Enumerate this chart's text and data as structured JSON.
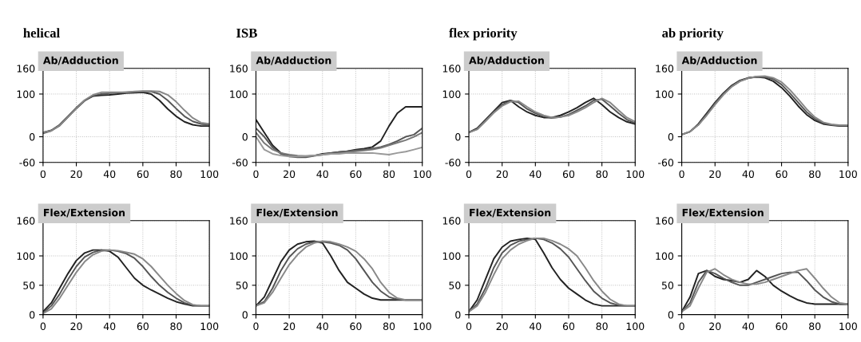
{
  "chart_data": [
    {
      "type": "line",
      "title": "helical",
      "subtitle": "Ab/Adduction",
      "x": [
        0,
        5,
        10,
        15,
        20,
        25,
        30,
        35,
        40,
        45,
        50,
        55,
        60,
        65,
        70,
        75,
        80,
        85,
        90,
        95,
        100
      ],
      "xlim": [
        0,
        100
      ],
      "ylim": [
        -60,
        160
      ],
      "xticks": [
        0,
        20,
        40,
        60,
        80,
        100
      ],
      "yticks": [
        -60,
        0,
        100,
        160
      ],
      "grid": true,
      "series": [
        {
          "color": "#222222",
          "values": [
            10,
            15,
            28,
            48,
            68,
            85,
            95,
            97,
            98,
            100,
            102,
            103,
            104,
            100,
            85,
            65,
            48,
            35,
            28,
            25,
            25
          ]
        },
        {
          "color": "#555555",
          "values": [
            8,
            14,
            26,
            46,
            66,
            84,
            96,
            100,
            102,
            103,
            104,
            105,
            106,
            106,
            100,
            85,
            66,
            48,
            36,
            30,
            28
          ]
        },
        {
          "color": "#888888",
          "values": [
            10,
            14,
            27,
            47,
            67,
            86,
            98,
            104,
            104,
            104,
            104,
            106,
            107,
            107,
            106,
            98,
            82,
            62,
            44,
            33,
            30
          ]
        }
      ]
    },
    {
      "type": "line",
      "title": "ISB",
      "subtitle": "Ab/Adduction",
      "x": [
        0,
        5,
        10,
        15,
        20,
        25,
        30,
        35,
        40,
        45,
        50,
        55,
        60,
        65,
        70,
        75,
        80,
        85,
        90,
        95,
        100
      ],
      "xlim": [
        0,
        100
      ],
      "ylim": [
        -60,
        160
      ],
      "xticks": [
        0,
        20,
        40,
        60,
        80,
        100
      ],
      "yticks": [
        -60,
        0,
        100,
        160
      ],
      "grid": true,
      "series": [
        {
          "color": "#222222",
          "values": [
            40,
            10,
            -20,
            -38,
            -45,
            -46,
            -46,
            -44,
            -40,
            -38,
            -36,
            -34,
            -30,
            -28,
            -24,
            -10,
            25,
            55,
            70,
            70,
            70
          ]
        },
        {
          "color": "#555555",
          "values": [
            20,
            0,
            -25,
            -40,
            -46,
            -48,
            -48,
            -45,
            -42,
            -38,
            -36,
            -34,
            -32,
            -30,
            -28,
            -24,
            -18,
            -10,
            0,
            5,
            20
          ]
        },
        {
          "color": "#777777",
          "values": [
            10,
            -15,
            -30,
            -38,
            -42,
            -44,
            -45,
            -44,
            -42,
            -40,
            -38,
            -36,
            -34,
            -32,
            -30,
            -26,
            -20,
            -14,
            -8,
            0,
            10
          ]
        },
        {
          "color": "#999999",
          "values": [
            0,
            -30,
            -40,
            -44,
            -46,
            -46,
            -45,
            -44,
            -42,
            -40,
            -40,
            -38,
            -38,
            -38,
            -38,
            -40,
            -42,
            -38,
            -35,
            -30,
            -25
          ]
        }
      ]
    },
    {
      "type": "line",
      "title": "flex priority",
      "subtitle": "Ab/Adduction",
      "x": [
        0,
        5,
        10,
        15,
        20,
        25,
        30,
        35,
        40,
        45,
        50,
        55,
        60,
        65,
        70,
        75,
        80,
        85,
        90,
        95,
        100
      ],
      "xlim": [
        0,
        100
      ],
      "ylim": [
        -60,
        160
      ],
      "xticks": [
        0,
        20,
        40,
        60,
        80,
        100
      ],
      "yticks": [
        -60,
        0,
        100,
        160
      ],
      "grid": true,
      "series": [
        {
          "color": "#222222",
          "values": [
            10,
            20,
            40,
            60,
            80,
            85,
            70,
            58,
            50,
            45,
            45,
            50,
            58,
            68,
            80,
            90,
            75,
            58,
            45,
            35,
            30
          ]
        },
        {
          "color": "#555555",
          "values": [
            10,
            18,
            38,
            58,
            75,
            85,
            80,
            65,
            55,
            48,
            44,
            46,
            52,
            62,
            72,
            85,
            88,
            72,
            55,
            40,
            32
          ]
        },
        {
          "color": "#888888",
          "values": [
            10,
            17,
            36,
            56,
            72,
            82,
            83,
            70,
            58,
            50,
            45,
            46,
            50,
            58,
            68,
            80,
            90,
            80,
            62,
            45,
            35
          ]
        }
      ]
    },
    {
      "type": "line",
      "title": "ab priority",
      "subtitle": "Ab/Adduction",
      "x": [
        0,
        5,
        10,
        15,
        20,
        25,
        30,
        35,
        40,
        45,
        50,
        55,
        60,
        65,
        70,
        75,
        80,
        85,
        90,
        95,
        100
      ],
      "xlim": [
        0,
        100
      ],
      "ylim": [
        -60,
        160
      ],
      "xticks": [
        0,
        20,
        40,
        60,
        80,
        100
      ],
      "yticks": [
        -60,
        0,
        100,
        160
      ],
      "grid": true,
      "series": [
        {
          "color": "#222222",
          "values": [
            5,
            12,
            30,
            55,
            80,
            102,
            120,
            132,
            138,
            140,
            138,
            130,
            115,
            95,
            72,
            52,
            38,
            30,
            27,
            25,
            25
          ]
        },
        {
          "color": "#555555",
          "values": [
            5,
            12,
            28,
            52,
            78,
            100,
            118,
            130,
            137,
            140,
            140,
            135,
            122,
            102,
            80,
            58,
            42,
            32,
            28,
            26,
            26
          ]
        },
        {
          "color": "#888888",
          "values": [
            5,
            12,
            28,
            50,
            75,
            98,
            117,
            130,
            137,
            141,
            142,
            138,
            128,
            110,
            88,
            65,
            46,
            34,
            29,
            27,
            27
          ]
        }
      ]
    },
    {
      "type": "line",
      "title": "Flex/Extension",
      "x": [
        0,
        5,
        10,
        15,
        20,
        25,
        30,
        35,
        40,
        45,
        50,
        55,
        60,
        65,
        70,
        75,
        80,
        85,
        90,
        95,
        100
      ],
      "xlim": [
        0,
        100
      ],
      "ylim": [
        0,
        160
      ],
      "xticks": [
        0,
        20,
        40,
        60,
        80,
        100
      ],
      "yticks": [
        0,
        50,
        100,
        160
      ],
      "grid": true,
      "series": [
        {
          "color": "#222222",
          "values": [
            5,
            20,
            45,
            70,
            92,
            105,
            110,
            110,
            108,
            98,
            80,
            62,
            50,
            42,
            35,
            28,
            22,
            18,
            15,
            15,
            15
          ]
        },
        {
          "color": "#555555",
          "values": [
            3,
            15,
            35,
            60,
            82,
            98,
            106,
            110,
            110,
            108,
            104,
            96,
            82,
            65,
            50,
            38,
            28,
            20,
            16,
            15,
            15
          ]
        },
        {
          "color": "#888888",
          "values": [
            2,
            10,
            28,
            50,
            72,
            90,
            102,
            108,
            110,
            109,
            106,
            103,
            95,
            82,
            66,
            50,
            36,
            24,
            17,
            15,
            15
          ]
        }
      ]
    },
    {
      "type": "line",
      "title": "Flex/Extension",
      "x": [
        0,
        5,
        10,
        15,
        20,
        25,
        30,
        35,
        40,
        45,
        50,
        55,
        60,
        65,
        70,
        75,
        80,
        85,
        90,
        95,
        100
      ],
      "xlim": [
        0,
        100
      ],
      "ylim": [
        0,
        160
      ],
      "xticks": [
        0,
        20,
        40,
        60,
        80,
        100
      ],
      "yticks": [
        0,
        50,
        100,
        160
      ],
      "grid": true,
      "series": [
        {
          "color": "#222222",
          "values": [
            15,
            30,
            60,
            90,
            110,
            120,
            124,
            125,
            122,
            100,
            75,
            55,
            45,
            35,
            28,
            25,
            25,
            25,
            25,
            25,
            25
          ]
        },
        {
          "color": "#555555",
          "values": [
            15,
            22,
            45,
            75,
            98,
            112,
            120,
            124,
            124,
            122,
            118,
            110,
            95,
            75,
            55,
            40,
            30,
            26,
            25,
            25,
            25
          ]
        },
        {
          "color": "#888888",
          "values": [
            15,
            20,
            38,
            62,
            85,
            102,
            115,
            122,
            125,
            124,
            120,
            115,
            108,
            95,
            78,
            55,
            38,
            28,
            25,
            25,
            25
          ]
        }
      ]
    },
    {
      "type": "line",
      "title": "Flex/Extension",
      "x": [
        0,
        5,
        10,
        15,
        20,
        25,
        30,
        35,
        40,
        45,
        50,
        55,
        60,
        65,
        70,
        75,
        80,
        85,
        90,
        95,
        100
      ],
      "xlim": [
        0,
        100
      ],
      "ylim": [
        0,
        160
      ],
      "xticks": [
        0,
        20,
        40,
        60,
        80,
        100
      ],
      "yticks": [
        0,
        50,
        100,
        160
      ],
      "grid": true,
      "series": [
        {
          "color": "#222222",
          "values": [
            5,
            25,
            60,
            95,
            115,
            125,
            128,
            130,
            128,
            105,
            80,
            60,
            45,
            35,
            25,
            18,
            15,
            15,
            15,
            15,
            15
          ]
        },
        {
          "color": "#555555",
          "values": [
            5,
            18,
            45,
            80,
            105,
            118,
            125,
            128,
            130,
            128,
            122,
            112,
            98,
            78,
            58,
            40,
            28,
            20,
            16,
            15,
            15
          ]
        },
        {
          "color": "#888888",
          "values": [
            5,
            15,
            38,
            68,
            95,
            110,
            120,
            126,
            130,
            130,
            126,
            120,
            112,
            100,
            80,
            58,
            40,
            26,
            18,
            15,
            15
          ]
        }
      ]
    },
    {
      "type": "line",
      "title": "Flex/Extension",
      "x": [
        0,
        5,
        10,
        15,
        20,
        25,
        30,
        35,
        40,
        45,
        50,
        55,
        60,
        65,
        70,
        75,
        80,
        85,
        90,
        95,
        100
      ],
      "xlim": [
        0,
        100
      ],
      "ylim": [
        0,
        160
      ],
      "xticks": [
        0,
        20,
        40,
        60,
        80,
        100
      ],
      "yticks": [
        0,
        50,
        100,
        160
      ],
      "grid": true,
      "series": [
        {
          "color": "#222222",
          "values": [
            5,
            30,
            70,
            75,
            65,
            60,
            58,
            55,
            60,
            75,
            65,
            50,
            40,
            32,
            25,
            20,
            18,
            18,
            18,
            18,
            18
          ]
        },
        {
          "color": "#555555",
          "values": [
            5,
            20,
            55,
            75,
            70,
            62,
            55,
            50,
            50,
            55,
            60,
            65,
            70,
            72,
            72,
            58,
            42,
            30,
            22,
            18,
            18
          ]
        },
        {
          "color": "#888888",
          "values": [
            5,
            15,
            45,
            72,
            78,
            68,
            60,
            55,
            52,
            52,
            55,
            60,
            65,
            70,
            75,
            78,
            62,
            45,
            30,
            20,
            18
          ]
        }
      ]
    }
  ]
}
